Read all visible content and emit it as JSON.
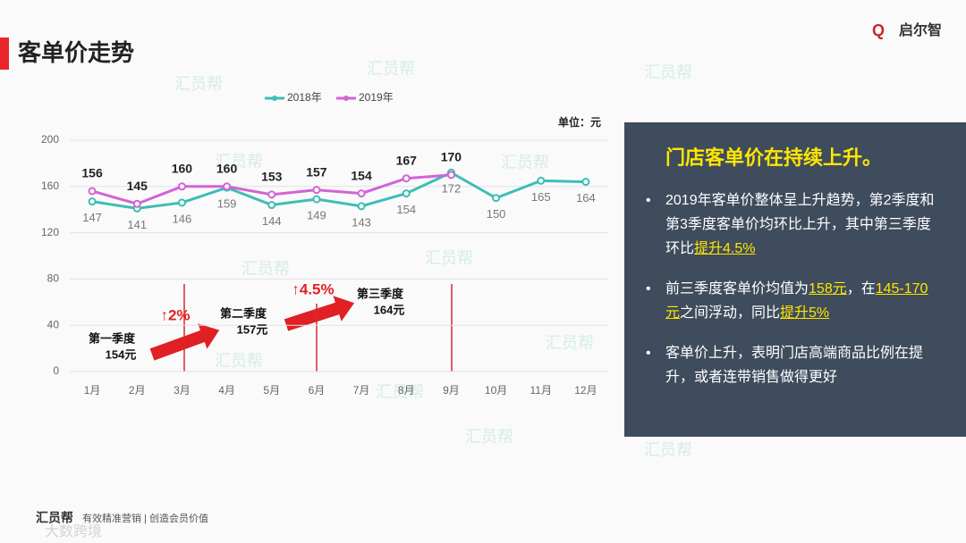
{
  "header": {
    "title": "客单价走势",
    "logo": "启尔智"
  },
  "chart_data": {
    "type": "line",
    "categories": [
      "1月",
      "2月",
      "3月",
      "4月",
      "5月",
      "6月",
      "7月",
      "8月",
      "9月",
      "10月",
      "11月",
      "12月"
    ],
    "series": [
      {
        "name": "2018年",
        "color": "#3dbdb5",
        "values": [
          147,
          141,
          146,
          159,
          144,
          149,
          143,
          154,
          172,
          150,
          165,
          164
        ]
      },
      {
        "name": "2019年",
        "color": "#d263d6",
        "values": [
          156,
          145,
          160,
          160,
          153,
          157,
          154,
          167,
          170,
          null,
          null,
          null
        ]
      }
    ],
    "ylim": [
      0,
      200
    ],
    "yticks": [
      0,
      40,
      80,
      120,
      160,
      200
    ],
    "grid": true,
    "legend": "top",
    "unit": "单位：元",
    "quarters": [
      {
        "name": "第一季度",
        "value": "154元"
      },
      {
        "name": "第二季度",
        "value": "157元"
      },
      {
        "name": "第三季度",
        "value": "164元"
      }
    ],
    "growth": [
      "↑2%",
      "↑4.5%"
    ]
  },
  "panel": {
    "title": "门店客单价在持续上升。",
    "bullets": [
      [
        {
          "text": "2019年客单价整体呈上升趋势，第2季度和第3季度客单价均环比上升，其中第三季度环比"
        },
        {
          "text": "提升4.5%",
          "highlight": true
        }
      ],
      [
        {
          "text": "前三季度客单价均值为"
        },
        {
          "text": "158元",
          "highlight": true
        },
        {
          "text": "，在"
        },
        {
          "text": "145-170元",
          "highlight": true
        },
        {
          "text": "之间浮动，同比"
        },
        {
          "text": "提升5%",
          "highlight": true
        }
      ],
      [
        {
          "text": "客单价上升，表明门店高端商品比例在提升，或者连带销售做得更好"
        }
      ]
    ]
  },
  "footer": {
    "brand": "汇员帮",
    "slogan": "有效精准营销 | 创造会员价值",
    "watermark": "汇员帮",
    "corner": "大数跨境"
  }
}
